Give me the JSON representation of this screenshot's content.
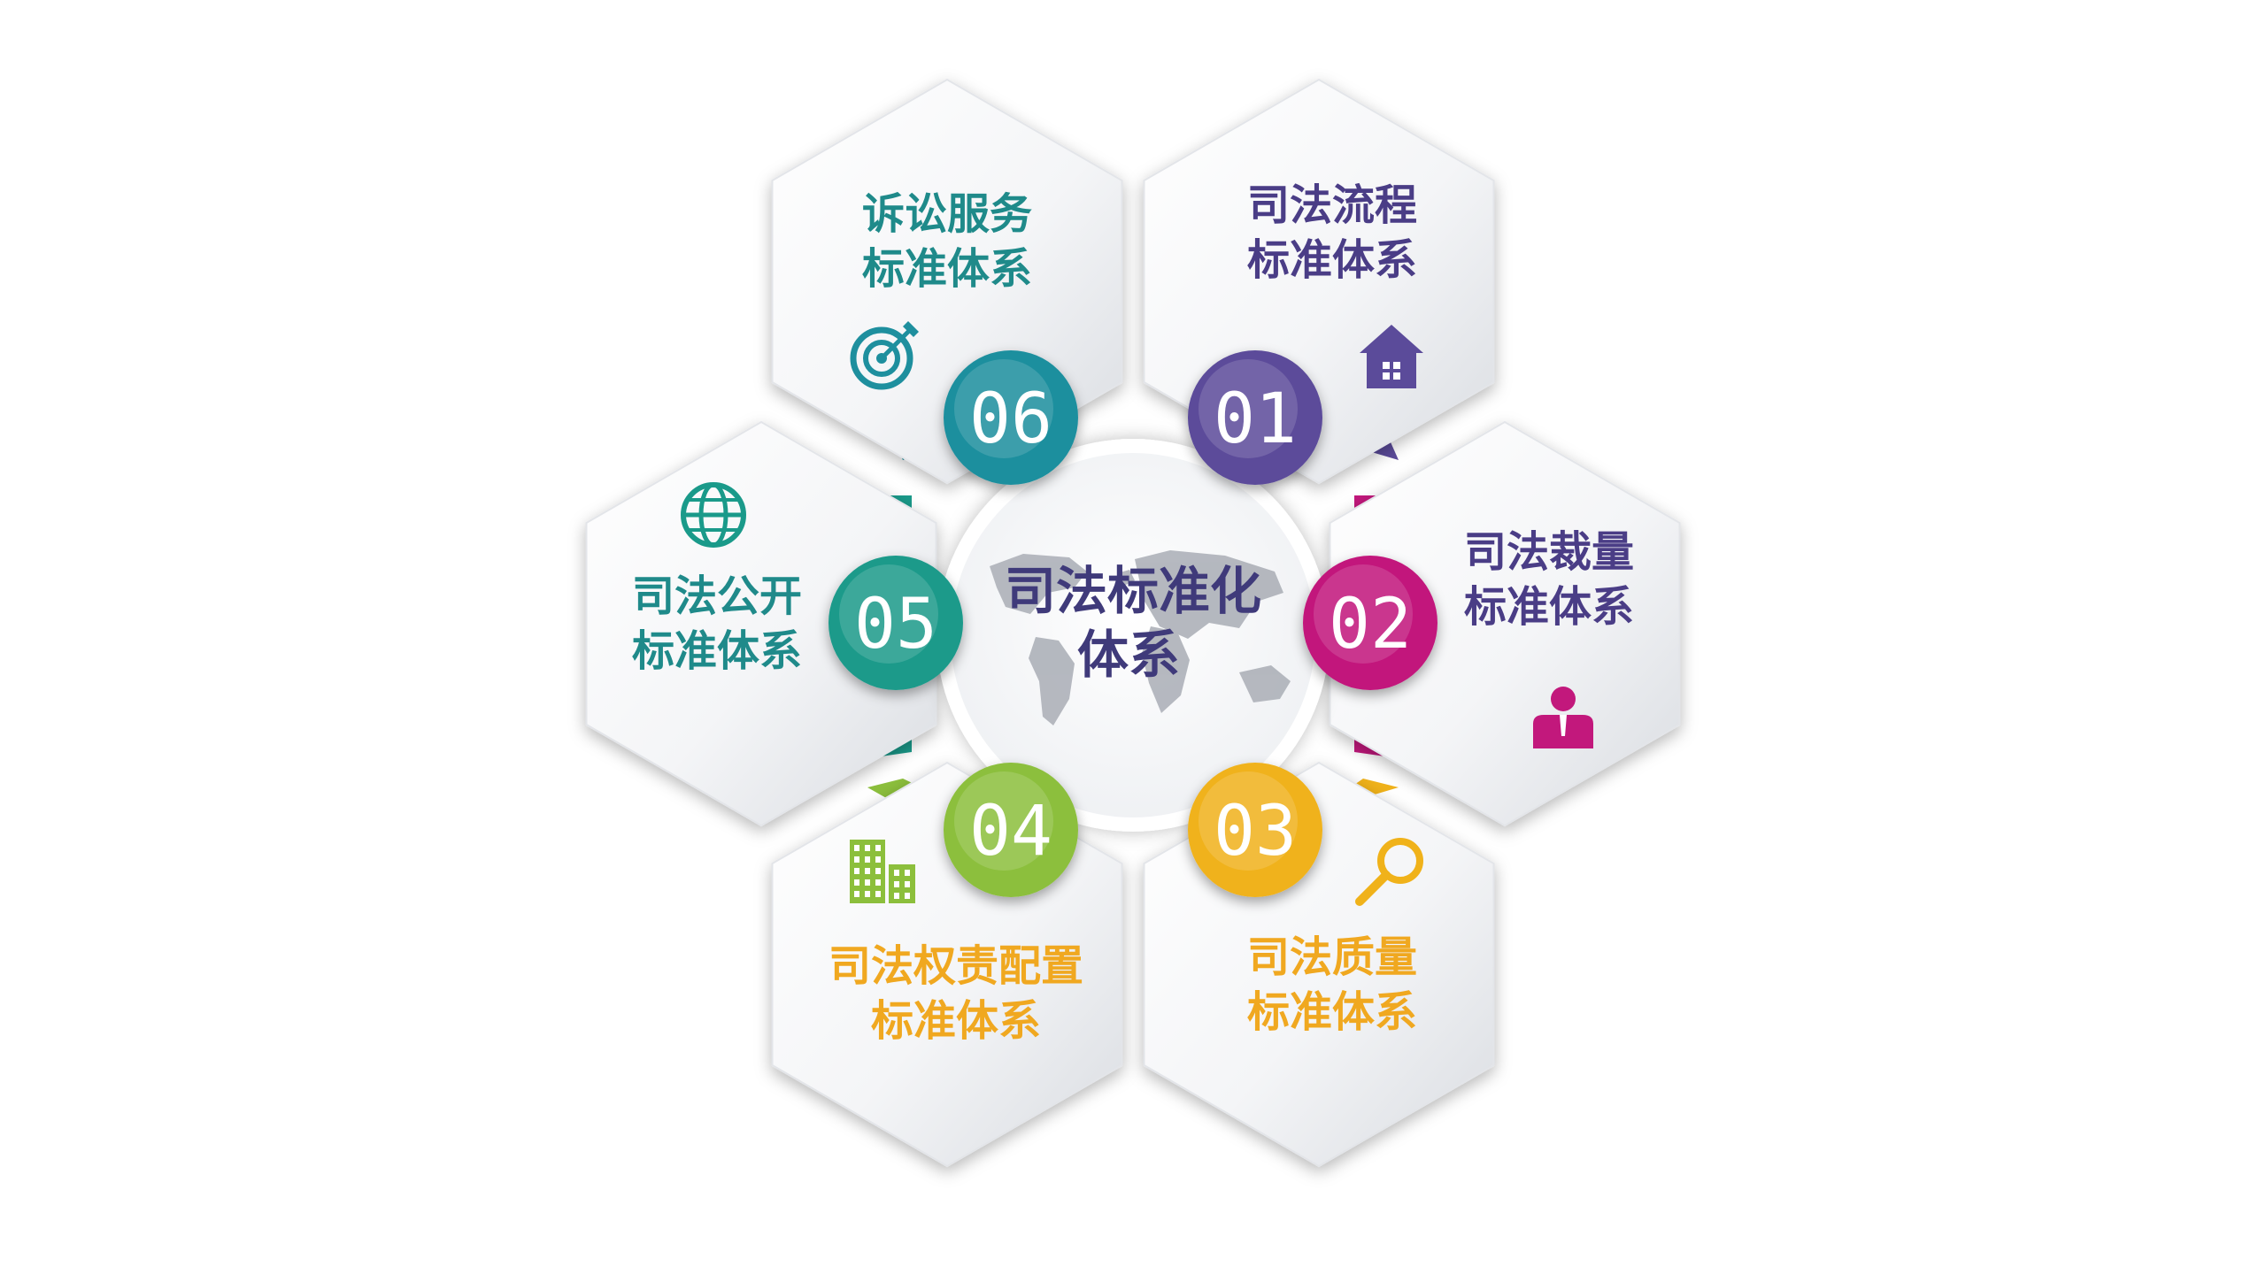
{
  "center": {
    "title_line1": "司法标准化",
    "title_line2": "体系"
  },
  "segments": [
    {
      "number": "01",
      "line1": "司法流程",
      "line2": "标准体系",
      "color": "#5b4b9a",
      "icon": "house-icon"
    },
    {
      "number": "02",
      "line1": "司法裁量",
      "line2": "标准体系",
      "color": "#c2187c",
      "icon": "person-icon"
    },
    {
      "number": "03",
      "line1": "司法质量",
      "line2": "标准体系",
      "color": "#f0b21a",
      "icon": "magnifier-icon"
    },
    {
      "number": "04",
      "line1": "司法权责配置",
      "line2": "标准体系",
      "color": "#8cbf3c",
      "icon": "building-icon"
    },
    {
      "number": "05",
      "line1": "司法公开",
      "line2": "标准体系",
      "color": "#1a9a8a",
      "icon": "globe-icon"
    },
    {
      "number": "06",
      "line1": "诉讼服务",
      "line2": "标准体系",
      "color": "#1e8f9e",
      "icon": "target-icon"
    }
  ],
  "colors": {
    "title_purple": "#4a3d86",
    "title_teal": "#1f8a8a",
    "title_gold": "#f0a820"
  }
}
